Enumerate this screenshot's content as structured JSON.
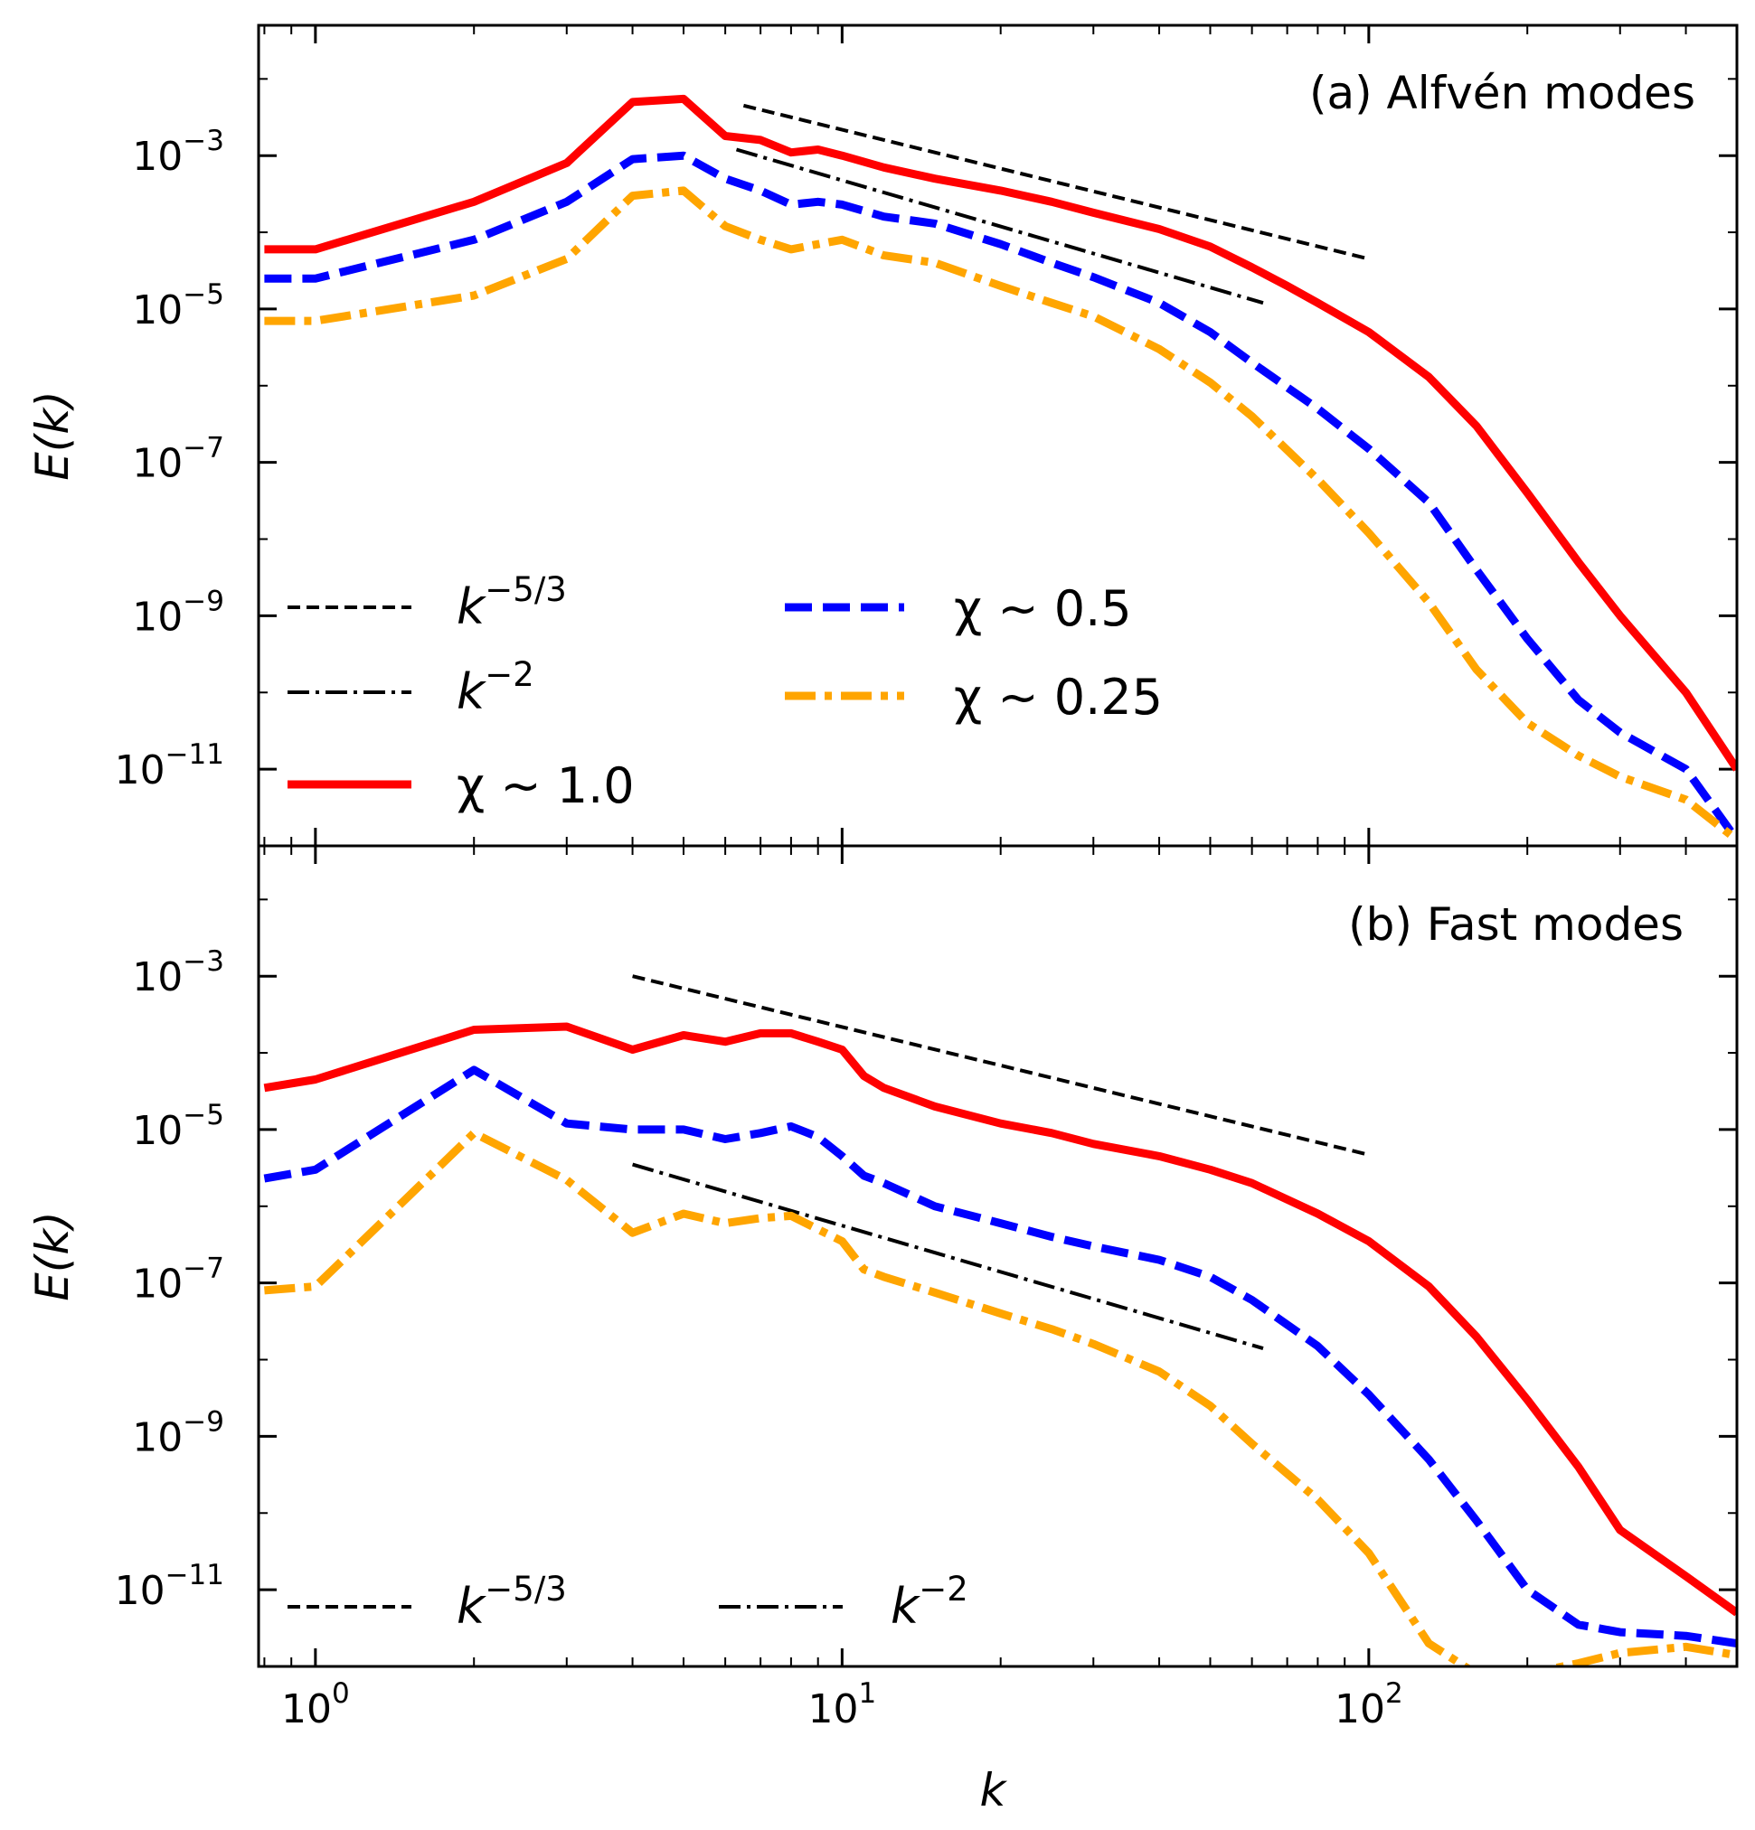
{
  "chart_data": [
    {
      "type": "line",
      "annotation": "(a) Alfvén modes",
      "xlabel": "k",
      "ylabel": "E(k)",
      "xscale": "log",
      "yscale": "log",
      "xlim": [
        0.78,
        500
      ],
      "ylim": [
        1e-12,
        0.05
      ],
      "x_ticks": [
        {
          "base": "10",
          "exp": "0"
        },
        {
          "base": "10",
          "exp": "1"
        },
        {
          "base": "10",
          "exp": "2"
        }
      ],
      "y_ticks": [
        {
          "base": "10",
          "exp": "−3"
        },
        {
          "base": "10",
          "exp": "−5"
        },
        {
          "base": "10",
          "exp": "−7"
        },
        {
          "base": "10",
          "exp": "−9"
        },
        {
          "base": "10",
          "exp": "−11"
        }
      ],
      "grid": false,
      "legend_position": "bottom-left",
      "series": [
        {
          "name": "k^{-5/3}",
          "label_base": "k",
          "label_sup": "−5/3",
          "color": "#000000",
          "style": "dashed",
          "x": [
            6.5,
            100
          ],
          "y": [
            0.0045,
            4.5e-05
          ]
        },
        {
          "name": "k^{-2}",
          "label_base": "k",
          "label_sup": "−2",
          "color": "#000000",
          "style": "dashdot",
          "x": [
            6.3,
            63
          ],
          "y": [
            0.0012,
            1.2e-05
          ]
        },
        {
          "name": "χ ~ 1.0",
          "label_text": "χ ~ 1.0",
          "color": "#ff0000",
          "style": "solid",
          "x": [
            0.8,
            1,
            2,
            3,
            4,
            5,
            6,
            7,
            8,
            9,
            10,
            12,
            15,
            20,
            25,
            30,
            40,
            50,
            60,
            70,
            80,
            100,
            130,
            160,
            200,
            250,
            300,
            400,
            500
          ],
          "y": [
            6e-05,
            6e-05,
            0.00025,
            0.0008,
            0.005,
            0.0055,
            0.0018,
            0.0016,
            0.0011,
            0.0012,
            0.001,
            0.0007,
            0.0005,
            0.00035,
            0.00025,
            0.00018,
            0.00011,
            6.5e-05,
            3.5e-05,
            2e-05,
            1.2e-05,
            5e-06,
            1.3e-06,
            3e-07,
            4e-08,
            5e-09,
            1e-09,
            1e-10,
            1e-11
          ]
        },
        {
          "name": "χ ~ 0.5",
          "label_text": "χ ~ 0.5",
          "color": "#0000ff",
          "style": "dashed",
          "x": [
            0.8,
            1,
            2,
            3,
            4,
            5,
            6,
            7,
            8,
            9,
            10,
            12,
            15,
            20,
            25,
            30,
            40,
            50,
            60,
            80,
            100,
            130,
            160,
            200,
            250,
            300,
            400,
            500
          ],
          "y": [
            2.5e-05,
            2.5e-05,
            8e-05,
            0.00025,
            0.0009,
            0.001,
            0.0005,
            0.00035,
            0.00023,
            0.00025,
            0.00023,
            0.00016,
            0.00013,
            7e-05,
            4e-05,
            2.6e-05,
            1.2e-05,
            5e-06,
            2e-06,
            5e-07,
            1.5e-07,
            3e-08,
            4e-09,
            5e-10,
            8e-11,
            3e-11,
            1e-11,
            1.2e-12
          ]
        },
        {
          "name": "χ ~ 0.25",
          "label_text": "χ ~ 0.25",
          "color": "#ffa500",
          "style": "dashdot",
          "x": [
            0.8,
            1,
            2,
            3,
            4,
            5,
            6,
            7,
            8,
            9,
            10,
            12,
            15,
            20,
            25,
            30,
            40,
            50,
            60,
            80,
            100,
            130,
            160,
            200,
            250,
            300,
            400,
            500
          ],
          "y": [
            7e-06,
            7e-06,
            1.5e-05,
            4.5e-05,
            0.0003,
            0.00035,
            0.00012,
            8e-05,
            6e-05,
            7e-05,
            8e-05,
            5e-05,
            4e-05,
            2e-05,
            1.2e-05,
            8e-06,
            3e-06,
            1.1e-06,
            4e-07,
            6e-08,
            1.2e-08,
            1.5e-09,
            2e-10,
            4e-11,
            1.5e-11,
            8e-12,
            4e-12,
            1.2e-12
          ]
        }
      ]
    },
    {
      "type": "line",
      "annotation": "(b) Fast modes",
      "xlabel": "k",
      "ylabel": "E(k)",
      "xscale": "log",
      "yscale": "log",
      "xlim": [
        0.78,
        500
      ],
      "ylim": [
        1e-12,
        0.05
      ],
      "x_ticks": [
        {
          "base": "10",
          "exp": "0"
        },
        {
          "base": "10",
          "exp": "1"
        },
        {
          "base": "10",
          "exp": "2"
        }
      ],
      "y_ticks": [
        {
          "base": "10",
          "exp": "−3"
        },
        {
          "base": "10",
          "exp": "−5"
        },
        {
          "base": "10",
          "exp": "−7"
        },
        {
          "base": "10",
          "exp": "−9"
        },
        {
          "base": "10",
          "exp": "−11"
        }
      ],
      "grid": false,
      "legend_position": "bottom-left",
      "series": [
        {
          "name": "k^{-5/3}",
          "label_base": "k",
          "label_sup": "−5/3",
          "color": "#000000",
          "style": "dashed",
          "x": [
            4,
            100
          ],
          "y": [
            0.001,
            4.7e-06
          ]
        },
        {
          "name": "k^{-2}",
          "label_base": "k",
          "label_sup": "−2",
          "color": "#000000",
          "style": "dashdot",
          "x": [
            4,
            63
          ],
          "y": [
            3.5e-06,
            1.4e-08
          ]
        },
        {
          "name": "χ ~ 1.0",
          "color": "#ff0000",
          "style": "solid",
          "x": [
            0.8,
            1,
            2,
            3,
            4,
            5,
            6,
            7,
            8,
            9,
            10,
            11,
            12,
            15,
            20,
            25,
            30,
            40,
            50,
            60,
            80,
            100,
            130,
            160,
            200,
            250,
            300,
            400,
            500
          ],
          "y": [
            3.5e-05,
            4.5e-05,
            0.0002,
            0.00022,
            0.00011,
            0.00017,
            0.00014,
            0.00018,
            0.00018,
            0.00014,
            0.00011,
            5e-05,
            3.5e-05,
            2e-05,
            1.2e-05,
            9e-06,
            6.5e-06,
            4.5e-06,
            3e-06,
            2e-06,
            8e-07,
            3.5e-07,
            9e-08,
            2e-08,
            3e-09,
            4e-10,
            6e-11,
            1.5e-11,
            5e-12
          ]
        },
        {
          "name": "χ ~ 0.5",
          "color": "#0000ff",
          "style": "dashed",
          "x": [
            0.8,
            1,
            2,
            3,
            4,
            5,
            6,
            7,
            8,
            9,
            10,
            11,
            12,
            15,
            20,
            25,
            30,
            40,
            50,
            60,
            80,
            100,
            130,
            160,
            200,
            250,
            300,
            400,
            500
          ],
          "y": [
            2.3e-06,
            3e-06,
            6e-05,
            1.2e-05,
            1e-05,
            1e-05,
            7.5e-06,
            9e-06,
            1.1e-05,
            8e-06,
            4.5e-06,
            2.5e-06,
            2e-06,
            1e-06,
            6e-07,
            4e-07,
            3e-07,
            2e-07,
            1.2e-07,
            6e-08,
            1.5e-08,
            3.5e-09,
            5e-10,
            8e-11,
            1e-11,
            3.5e-12,
            2.8e-12,
            2.5e-12,
            2e-12
          ]
        },
        {
          "name": "χ ~ 0.25",
          "color": "#ffa500",
          "style": "dashdot",
          "x": [
            0.8,
            1,
            2,
            3,
            4,
            5,
            6,
            7,
            8,
            9,
            10,
            11,
            12,
            15,
            20,
            25,
            30,
            40,
            50,
            60,
            80,
            100,
            130,
            160,
            200,
            250,
            300,
            400,
            500
          ],
          "y": [
            8e-08,
            9e-08,
            9e-06,
            2.2e-06,
            4.5e-07,
            8e-07,
            6e-07,
            7e-07,
            7.5e-07,
            5e-07,
            3.5e-07,
            1.5e-07,
            1.2e-07,
            7.5e-08,
            4e-08,
            2.5e-08,
            1.6e-08,
            7e-09,
            2.5e-09,
            8e-10,
            1.5e-10,
            3e-11,
            2e-12,
            8e-13,
            8e-13,
            1.1e-12,
            1.5e-12,
            1.8e-12,
            1.4e-12
          ]
        }
      ]
    }
  ]
}
